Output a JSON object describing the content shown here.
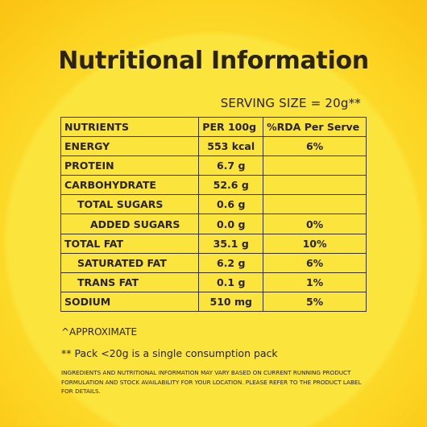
{
  "title": "Nutritional Information",
  "serving_size": "SERVING SIZE = 20g**",
  "table": {
    "headers": [
      "NUTRIENTS",
      "PER 100g",
      "%RDA Per Serve"
    ],
    "rows": [
      {
        "name": "ENERGY",
        "per100": "553 kcal",
        "rda": "6%",
        "level": 0
      },
      {
        "name": "PROTEIN",
        "per100": "6.7 g",
        "rda": "",
        "level": 0
      },
      {
        "name": "CARBOHYDRATE",
        "per100": "52.6 g",
        "rda": "",
        "level": 0
      },
      {
        "name": "TOTAL SUGARS",
        "per100": "0.6 g",
        "rda": "",
        "level": 1
      },
      {
        "name": "ADDED SUGARS",
        "per100": "0.0 g",
        "rda": "0%",
        "level": 2
      },
      {
        "name": "TOTAL FAT",
        "per100": "35.1 g",
        "rda": "10%",
        "level": 0
      },
      {
        "name": "SATURATED FAT",
        "per100": "6.2 g",
        "rda": "6%",
        "level": 1
      },
      {
        "name": "TRANS FAT",
        "per100": "0.1 g",
        "rda": "1%",
        "level": 1
      },
      {
        "name": "SODIUM",
        "per100": "510 mg",
        "rda": "5%",
        "level": 0
      }
    ]
  },
  "notes": {
    "approx": "^APPROXIMATE",
    "pack": "** Pack <20g is a single consumption pack",
    "disclaimer": "INGREDIENTS AND NUTRITIONAL INFORMATION MAY VARY BASED ON CURRENT RUNNING PRODUCT FORMULATION AND STOCK AVAILABILITY FOR YOUR LOCATION. PLEASE REFER TO THE PRODUCT LABEL FOR DETAILS."
  },
  "colors": {
    "background_center": "#fbe43b",
    "background_outer": "#f8bf10",
    "text": "#2a2418"
  }
}
